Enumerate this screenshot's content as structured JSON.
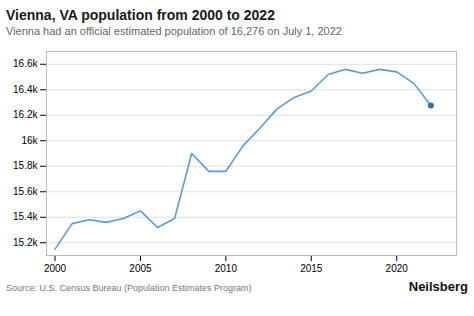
{
  "chart_data": {
    "type": "line",
    "title": "Vienna, VA population from 2000 to 2022",
    "subtitle": "Vienna had an official estimated population of 16,276 on July 1, 2022",
    "annotations": [
      "Source: U.S. Census Bureau (Population Estimates Program)",
      "Neilsberg"
    ],
    "x": [
      2000,
      2001,
      2002,
      2003,
      2004,
      2005,
      2006,
      2007,
      2008,
      2009,
      2010,
      2011,
      2012,
      2013,
      2014,
      2015,
      2016,
      2017,
      2018,
      2019,
      2020,
      2021,
      2022
    ],
    "series": [
      {
        "type": "line",
        "color": "#5b9bd5",
        "values": [
          15150,
          15350,
          15380,
          15360,
          15390,
          15450,
          15320,
          15390,
          15900,
          15760,
          15760,
          15960,
          16100,
          16250,
          16340,
          16390,
          16520,
          16560,
          16530,
          16560,
          16540,
          16450,
          16276
        ]
      },
      {
        "type": "scatter",
        "color": "#2e6fae",
        "values": [
          null,
          null,
          null,
          null,
          null,
          null,
          null,
          null,
          null,
          null,
          null,
          null,
          null,
          null,
          null,
          null,
          null,
          null,
          null,
          null,
          null,
          null,
          16276
        ]
      }
    ],
    "xlim": [
      1999.5,
      2023.5
    ],
    "xticks": [
      2000,
      2005,
      2010,
      2015,
      2020
    ],
    "ylim": [
      15100,
      16700
    ],
    "yticks": [
      {
        "value": 15200,
        "label": "15.2k"
      },
      {
        "value": 15400,
        "label": "15.4k"
      },
      {
        "value": 15600,
        "label": "15.6k"
      },
      {
        "value": 15800,
        "label": "15.8k"
      },
      {
        "value": 16000,
        "label": "16k"
      },
      {
        "value": 16200,
        "label": "16.2k"
      },
      {
        "value": 16400,
        "label": "16.4k"
      },
      {
        "value": 16600,
        "label": "16.6k"
      }
    ],
    "grid": "y"
  }
}
